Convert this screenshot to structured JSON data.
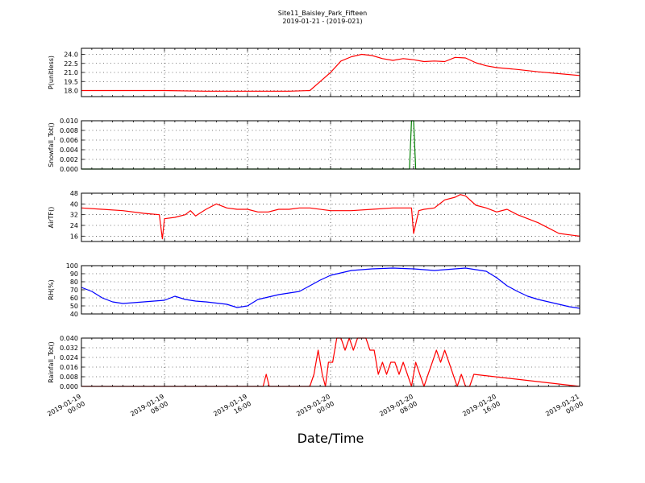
{
  "figure": {
    "title_line1": "Site11_Baisley_Park_Fifteen",
    "title_line2": "2019-01-21 - (2019-021)",
    "xlabel": "Date/Time"
  },
  "chart_data": [
    {
      "type": "line",
      "ylabel": "P(unitless)",
      "ylim": [
        17.0,
        25.0
      ],
      "yticks": [
        "24.0",
        "22.5",
        "21.0",
        "19.5",
        "18.0"
      ],
      "grid": true,
      "series": [
        {
          "color": "#ff0000",
          "x": [
            0,
            4,
            8,
            12,
            16,
            18,
            20,
            22,
            23,
            24,
            25,
            26,
            27,
            28,
            29,
            30,
            31,
            32,
            33,
            34,
            35,
            36,
            37,
            38,
            39,
            40,
            42,
            44,
            46,
            48
          ],
          "y": [
            18.0,
            18.0,
            18.0,
            17.9,
            17.9,
            17.9,
            17.9,
            18.0,
            19.5,
            21.0,
            22.9,
            23.6,
            24.0,
            23.8,
            23.3,
            23.0,
            23.3,
            23.1,
            22.8,
            22.9,
            22.8,
            23.5,
            23.4,
            22.6,
            22.1,
            21.8,
            21.5,
            21.1,
            20.8,
            20.5
          ]
        }
      ]
    },
    {
      "type": "line",
      "ylabel": "Snowfall_Tot()",
      "ylim": [
        0.0,
        0.01
      ],
      "yticks": [
        "0.010",
        "0.008",
        "0.006",
        "0.004",
        "0.002",
        "0.000"
      ],
      "grid": true,
      "series": [
        {
          "color": "#008000",
          "x": [
            0,
            31.6,
            31.8,
            32.0,
            32.2,
            48
          ],
          "y": [
            0.0,
            0.0,
            0.01,
            0.01,
            0.0,
            0.0
          ]
        }
      ]
    },
    {
      "type": "line",
      "ylabel": "AirTF()",
      "ylim": [
        12,
        48
      ],
      "yticks": [
        "48",
        "40",
        "32",
        "24",
        "16"
      ],
      "grid": true,
      "series": [
        {
          "color": "#ff0000",
          "x": [
            0,
            2,
            4,
            6,
            7.5,
            7.8,
            8.0,
            9,
            10,
            10.5,
            11,
            12,
            13,
            14,
            15,
            16,
            17,
            18,
            19,
            20,
            21,
            22,
            24,
            26,
            28,
            30,
            31.8,
            32.0,
            32.5,
            33,
            34,
            35,
            36,
            36.5,
            37,
            38,
            39,
            40,
            41,
            42,
            43,
            44,
            45,
            46,
            47,
            48
          ],
          "y": [
            37,
            36,
            35,
            33,
            32,
            14,
            29,
            30,
            32,
            35,
            31,
            36,
            40,
            37,
            36,
            36,
            34,
            34,
            36,
            36,
            37,
            37,
            35,
            35,
            36,
            37,
            37,
            18,
            35,
            36,
            37,
            43,
            45,
            47,
            46,
            39,
            37,
            34,
            36,
            32,
            29,
            26,
            22,
            18,
            17,
            16
          ]
        }
      ]
    },
    {
      "type": "line",
      "ylabel": "RH(%)",
      "ylim": [
        40,
        100
      ],
      "yticks": [
        "100",
        "90",
        "80",
        "70",
        "60",
        "50",
        "40"
      ],
      "grid": true,
      "series": [
        {
          "color": "#0000ff",
          "x": [
            0,
            1,
            2,
            3,
            4,
            6,
            8,
            9,
            10,
            11,
            12,
            14,
            15,
            16,
            17,
            18,
            19,
            20,
            21,
            22,
            23,
            24,
            26,
            28,
            30,
            32,
            34,
            36,
            37,
            38,
            39,
            40,
            41,
            42,
            43,
            44,
            45,
            46,
            47,
            48
          ],
          "y": [
            73,
            68,
            60,
            55,
            53,
            55,
            57,
            62,
            58,
            56,
            55,
            52,
            48,
            50,
            58,
            61,
            64,
            66,
            68,
            75,
            82,
            88,
            94,
            96,
            97,
            96,
            94,
            96,
            97,
            95,
            93,
            85,
            75,
            68,
            62,
            58,
            55,
            52,
            49,
            47
          ]
        }
      ]
    },
    {
      "type": "line",
      "ylabel": "Rainfall_Tot()",
      "ylim": [
        0.0,
        0.04
      ],
      "yticks": [
        "0.040",
        "0.032",
        "0.024",
        "0.016",
        "0.008",
        "0.000"
      ],
      "grid": true,
      "series": [
        {
          "color": "#ff0000",
          "x": [
            0,
            17.5,
            17.8,
            18.1,
            22.0,
            22.4,
            22.8,
            23.2,
            23.5,
            23.8,
            24.2,
            24.6,
            25.0,
            25.4,
            25.8,
            26.2,
            26.6,
            27.0,
            27.4,
            27.8,
            28.2,
            28.6,
            29.0,
            29.4,
            29.8,
            30.2,
            30.6,
            31.0,
            31.4,
            31.8,
            32.2,
            32.6,
            33.0,
            33.4,
            33.8,
            34.2,
            34.6,
            35.0,
            35.4,
            35.8,
            36.2,
            36.6,
            37.0,
            37.4,
            37.8,
            48
          ],
          "y": [
            0.0,
            0.0,
            0.01,
            0.0,
            0.0,
            0.01,
            0.03,
            0.01,
            0.0,
            0.02,
            0.02,
            0.04,
            0.04,
            0.03,
            0.04,
            0.03,
            0.04,
            0.04,
            0.04,
            0.03,
            0.03,
            0.01,
            0.02,
            0.01,
            0.02,
            0.02,
            0.01,
            0.02,
            0.01,
            0.0,
            0.02,
            0.01,
            0.0,
            0.01,
            0.02,
            0.03,
            0.02,
            0.03,
            0.02,
            0.01,
            0.0,
            0.01,
            0.0,
            0.0,
            0.01,
            0.0
          ]
        }
      ]
    }
  ],
  "xaxis": {
    "xlim": [
      0,
      48
    ],
    "unit": "hours since first tick",
    "ticks": [
      {
        "line1": "2019-01-19",
        "line2": "00:00",
        "x": 0
      },
      {
        "line1": "2019-01-19",
        "line2": "08:00",
        "x": 8
      },
      {
        "line1": "2019-01-19",
        "line2": "16:00",
        "x": 16
      },
      {
        "line1": "2019-01-20",
        "line2": "00:00",
        "x": 24
      },
      {
        "line1": "2019-01-20",
        "line2": "08:00",
        "x": 32
      },
      {
        "line1": "2019-01-20",
        "line2": "16:00",
        "x": 40
      },
      {
        "line1": "2019-01-21",
        "line2": "00:00",
        "x": 48
      }
    ]
  }
}
